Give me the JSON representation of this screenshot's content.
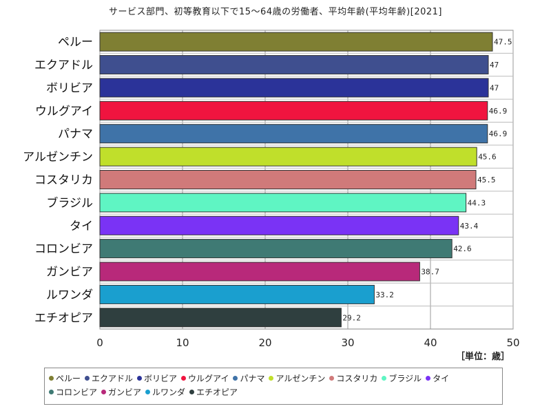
{
  "chart_data": {
    "type": "bar",
    "orientation": "horizontal",
    "title": "サービス部門、初等教育以下で15～64歳の労働者、平均年齢(平均年齢)[2021]",
    "unit": "［単位：歳］",
    "xlim": [
      0,
      50
    ],
    "xticks": [
      "0",
      "10",
      "20",
      "30",
      "40",
      "50"
    ],
    "grid": true,
    "legend_position": "bottom",
    "categories": [
      "ペルー",
      "エクアドル",
      "ボリビア",
      "ウルグアイ",
      "パナマ",
      "アルゼンチン",
      "コスタリカ",
      "ブラジル",
      "タイ",
      "コロンビア",
      "ガンビア",
      "ルワンダ",
      "エチオピア"
    ],
    "values": [
      47.5,
      47,
      47,
      46.9,
      46.9,
      45.6,
      45.5,
      44.3,
      43.4,
      42.6,
      38.7,
      33.2,
      29.2
    ],
    "value_labels": [
      "47.5",
      "47",
      "47",
      "46.9",
      "46.9",
      "45.6",
      "45.5",
      "44.3",
      "43.4",
      "42.6",
      "38.7",
      "33.2",
      "29.2"
    ],
    "colors": [
      "#7f7f33",
      "#3f4f8f",
      "#2b3399",
      "#f0143f",
      "#3f73a8",
      "#c0df2b",
      "#d07a7a",
      "#5ff5c3",
      "#7a33f5",
      "#3f7a74",
      "#b8297a",
      "#1a9fcf",
      "#2f3f3f"
    ]
  }
}
